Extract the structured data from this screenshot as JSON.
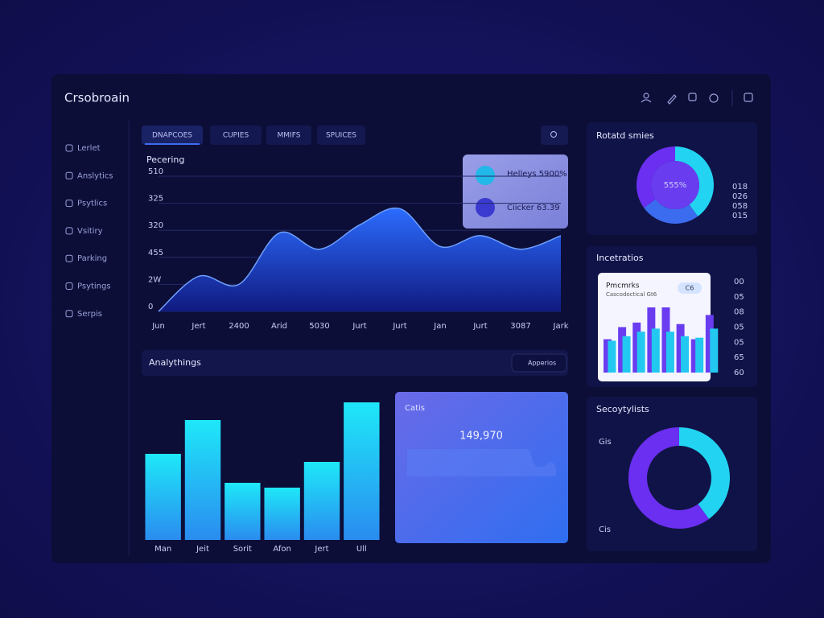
{
  "app": {
    "title": "Crsobroain"
  },
  "nav": [
    "Lerlet",
    "Anslytics",
    "Psytlics",
    "Vsitiry",
    "Parking",
    "Psytings",
    "Serpis"
  ],
  "tabs": [
    "DNAPCOES",
    "CUPIES",
    "MMIFS",
    "SPUICES"
  ],
  "tooltip": [
    "Helleys 5900%",
    "Ciicker 63.39"
  ],
  "section": {
    "title": "Analythings",
    "search": "Apperios"
  },
  "stat_card": {
    "title": "Catis",
    "value": "149,970"
  },
  "inner_card": {
    "title": "Pmcmrks",
    "subtitle": "Cascodoctical Gt6",
    "button": "C6"
  },
  "chart_data": [
    {
      "type": "area",
      "title": "Pecering",
      "categories": [
        "Jun",
        "Jert",
        "2400",
        "Arid",
        "5030",
        "Jurt",
        "Jurt",
        "Jan",
        "Jurt",
        "3087",
        "Jark"
      ],
      "values": [
        0,
        1.3,
        1.0,
        2.9,
        2.3,
        3.2,
        3.8,
        2.4,
        2.8,
        2.3,
        2.8
      ],
      "ylim": [
        0,
        5
      ],
      "yticks": [
        0,
        {
          "value": 1,
          "label": "2W"
        },
        {
          "value": 2,
          "label": "455"
        },
        {
          "value": 3,
          "label": "320"
        },
        {
          "value": 4,
          "label": "325"
        },
        {
          "value": 5,
          "label": "510"
        }
      ],
      "color": "#2a5cf0",
      "grid": true
    },
    {
      "type": "bar",
      "categories": [
        "Man",
        "Jeit",
        "Sorit",
        "Afon",
        "Jert",
        "Ull"
      ],
      "values": [
        107,
        149,
        71,
        65,
        97,
        171
      ],
      "ylim": [
        0,
        180
      ],
      "color": "#1fd0f0"
    },
    {
      "type": "donut",
      "title": "Rotatd smies",
      "center_label": "555%",
      "values": [
        40,
        25,
        35
      ],
      "colors": [
        "#22d3f2",
        "#3b6cf0",
        "#6a2ff0"
      ],
      "side_labels": [
        "018",
        "026",
        "058",
        "015"
      ]
    },
    {
      "type": "grouped-bar",
      "title": "Incetratios",
      "series": [
        {
          "color": "#6a3cf0",
          "values": [
            2.2,
            3.0,
            3.3,
            4.3,
            4.3,
            3.2,
            2.2,
            3.8
          ]
        },
        {
          "color": "#22c8f0",
          "values": [
            2.1,
            2.4,
            2.7,
            2.9,
            2.7,
            2.4,
            2.3,
            2.9
          ]
        }
      ],
      "ylim": [
        0,
        6
      ],
      "yticks": [
        {
          "value": 0,
          "label": "60"
        },
        {
          "value": 1,
          "label": "65"
        },
        {
          "value": 2,
          "label": "05"
        },
        {
          "value": 3,
          "label": "05"
        },
        {
          "value": 4,
          "label": "08"
        },
        {
          "value": 5,
          "label": "05"
        },
        {
          "value": 6,
          "label": "00"
        }
      ]
    },
    {
      "type": "donut",
      "title": "Secoytylists",
      "values": [
        40,
        60
      ],
      "colors": [
        "#22d3f2",
        "#6a2ff0"
      ],
      "side_labels": [
        "Gis",
        "Cis"
      ]
    }
  ]
}
